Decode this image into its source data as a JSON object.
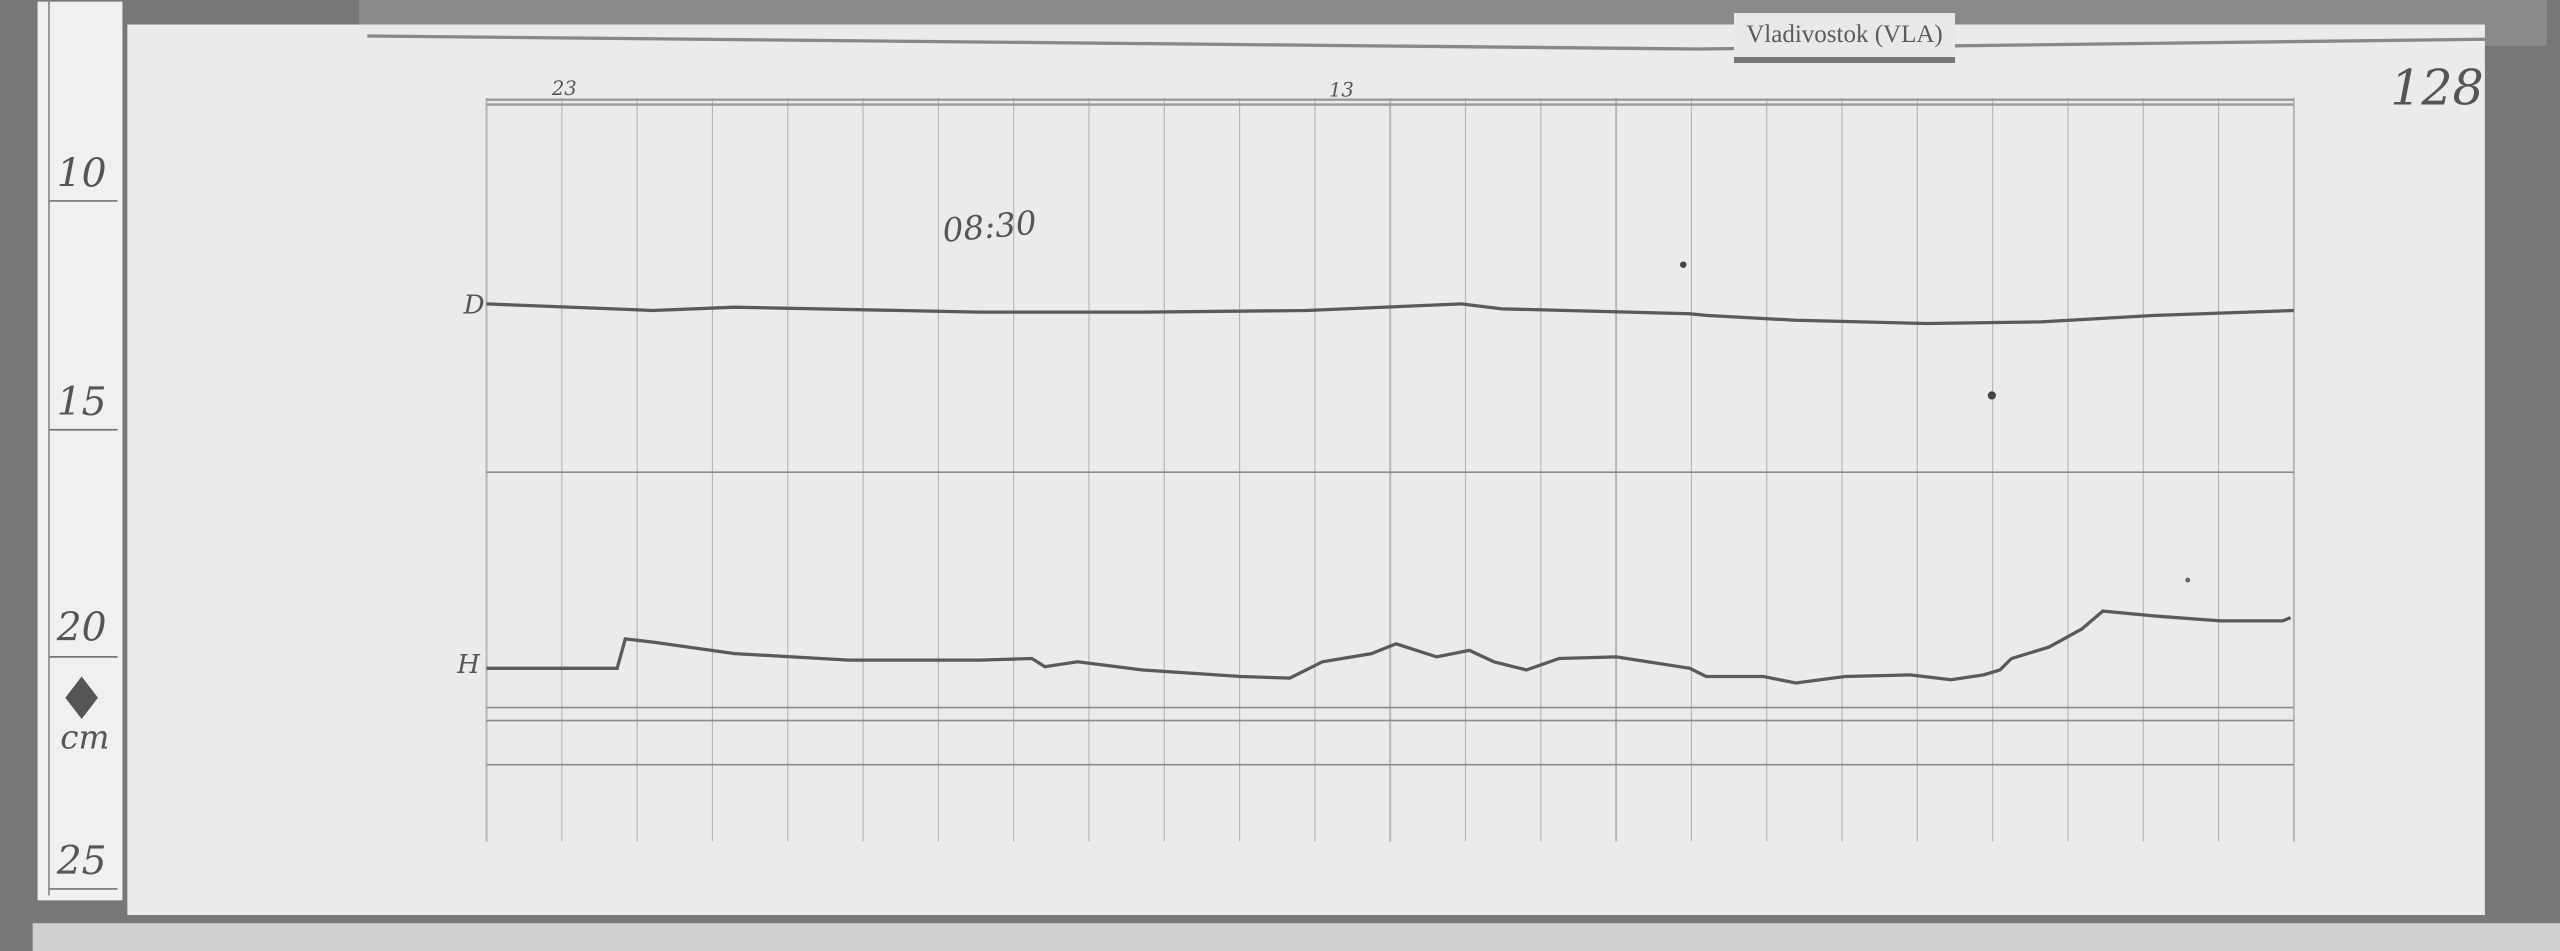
{
  "station_label": "Vladivostok (VLA)",
  "sheet_number": "128",
  "time_annotation": "08:30",
  "hour_marks": [
    "23",
    "13"
  ],
  "trace_labels": {
    "declination": "D",
    "horizontal": "H"
  },
  "ruler": {
    "marks": [
      "10",
      "15",
      "20",
      "25"
    ],
    "unit": "cm"
  },
  "colors": {
    "paper": "#ebebeb",
    "grid": "#a8a8a8",
    "trace": "#5a5a5a",
    "background": "#6e6e6e"
  }
}
